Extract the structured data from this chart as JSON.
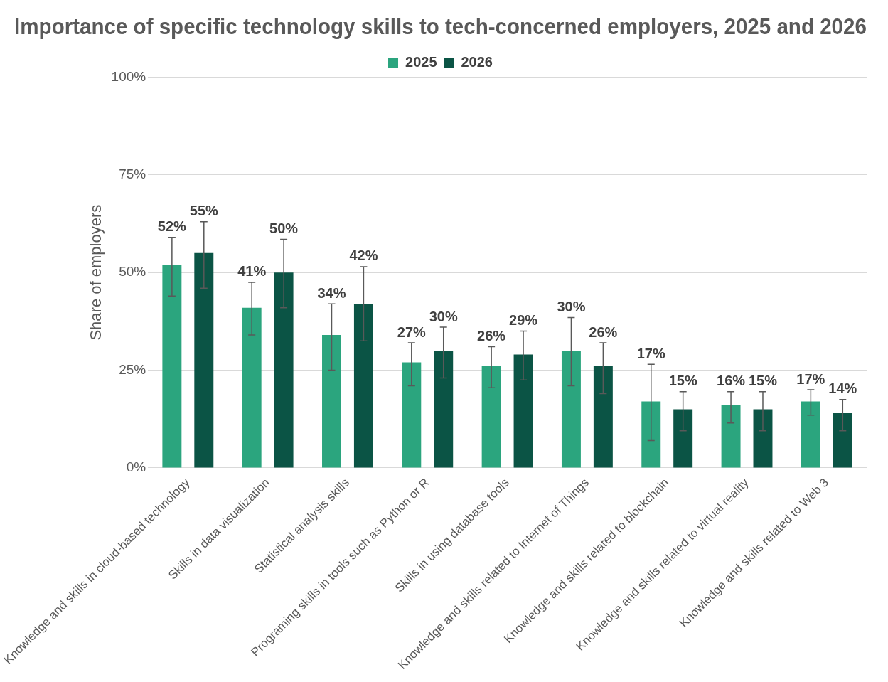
{
  "chart_data": {
    "type": "bar",
    "title": "Importance of specific technology skills to tech-concerned employers, 2025 and 2026",
    "ylabel": "Share of employers",
    "categories": [
      "Knowledge and skills in cloud-based technology",
      "Skills in data visualization",
      "Statistical analysis skills",
      "Programing skills in tools such as Python or R",
      "Skills in using database tools",
      "Knowledge and skills related to Internet of Things",
      "Knowledge and skills related to blockchain",
      "Knowledge and skills related to virtual reality",
      "Knowledge and skills related to Web 3"
    ],
    "series": [
      {
        "name": "2025",
        "color": "#2ba57e",
        "values": [
          52,
          41,
          34,
          27,
          26,
          30,
          17,
          16,
          17
        ],
        "value_labels": [
          "52%",
          "41%",
          "34%",
          "27%",
          "26%",
          "30%",
          "17%",
          "16%",
          "17%"
        ],
        "errors": [
          [
            44,
            59
          ],
          [
            34,
            47.5
          ],
          [
            25,
            42
          ],
          [
            21,
            32
          ],
          [
            20.5,
            31
          ],
          [
            21,
            38.5
          ],
          [
            7,
            26.5
          ],
          [
            11.5,
            19.5
          ],
          [
            13.5,
            20
          ]
        ]
      },
      {
        "name": "2026",
        "color": "#0b5445",
        "values": [
          55,
          50,
          42,
          30,
          29,
          26,
          15,
          15,
          14
        ],
        "value_labels": [
          "55%",
          "50%",
          "42%",
          "30%",
          "29%",
          "26%",
          "15%",
          "15%",
          "14%"
        ],
        "errors": [
          [
            46,
            63
          ],
          [
            41,
            58.5
          ],
          [
            32.5,
            51.5
          ],
          [
            23,
            36
          ],
          [
            22.5,
            35
          ],
          [
            19,
            32
          ],
          [
            9.5,
            19.5
          ],
          [
            9.5,
            19.5
          ],
          [
            9.5,
            17.5
          ]
        ]
      }
    ],
    "ylim": [
      0,
      100
    ],
    "yticks": [
      {
        "value": 0,
        "label": "0%"
      },
      {
        "value": 25,
        "label": "25%"
      },
      {
        "value": 50,
        "label": "50%"
      },
      {
        "value": 75,
        "label": "75%"
      },
      {
        "value": 100,
        "label": "100%"
      }
    ],
    "grid": "y",
    "legend": "top"
  }
}
